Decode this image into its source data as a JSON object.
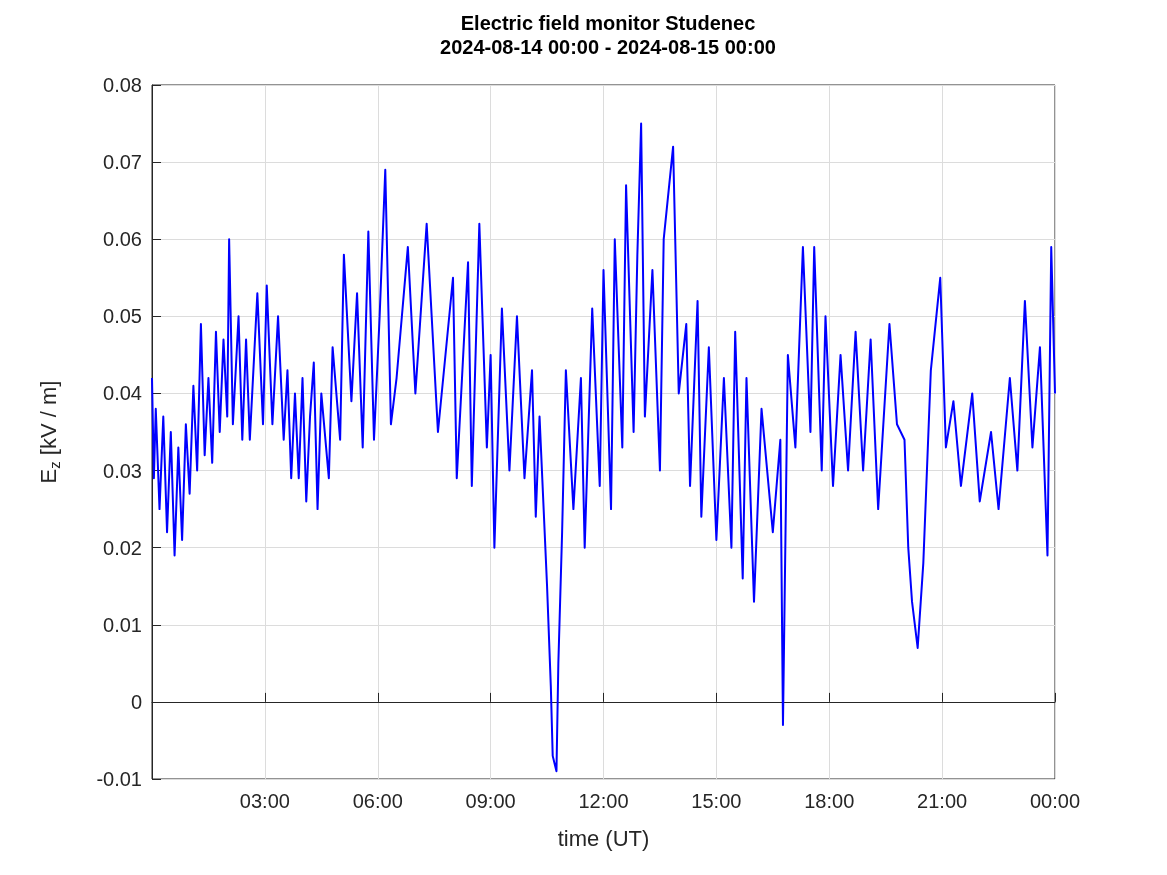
{
  "chart_data": {
    "type": "line",
    "title": "Electric field monitor Studenec",
    "subtitle": "2024-08-14 00:00 - 2024-08-15 00:00",
    "xlabel": "time (UT)",
    "ylabel": "E$_{z}$ [kV / m]",
    "x": [
      0,
      0.05,
      0.1,
      0.2,
      0.3,
      0.4,
      0.5,
      0.6,
      0.7,
      0.8,
      0.9,
      1.0,
      1.1,
      1.2,
      1.3,
      1.4,
      1.5,
      1.6,
      1.7,
      1.8,
      1.9,
      2.0,
      2.05,
      2.15,
      2.3,
      2.4,
      2.5,
      2.6,
      2.8,
      2.95,
      3.05,
      3.2,
      3.35,
      3.5,
      3.6,
      3.7,
      3.8,
      3.9,
      4.0,
      4.1,
      4.2,
      4.3,
      4.4,
      4.5,
      4.7,
      4.8,
      5.0,
      5.1,
      5.3,
      5.45,
      5.6,
      5.75,
      5.9,
      6.05,
      6.2,
      6.35,
      6.5,
      6.8,
      7.0,
      7.3,
      7.6,
      8.0,
      8.1,
      8.4,
      8.5,
      8.7,
      8.9,
      9.0,
      9.1,
      9.3,
      9.5,
      9.7,
      9.9,
      10.1,
      10.2,
      10.3,
      10.5,
      10.6,
      10.65,
      10.75,
      10.8,
      10.9,
      11.0,
      11.2,
      11.4,
      11.5,
      11.7,
      11.9,
      12.0,
      12.2,
      12.3,
      12.5,
      12.6,
      12.8,
      12.9,
      13.0,
      13.1,
      13.3,
      13.5,
      13.6,
      13.85,
      14.0,
      14.2,
      14.3,
      14.5,
      14.6,
      14.8,
      15.0,
      15.2,
      15.4,
      15.5,
      15.7,
      15.8,
      16.0,
      16.2,
      16.5,
      16.7,
      16.77,
      16.9,
      17.1,
      17.3,
      17.5,
      17.6,
      17.8,
      17.9,
      18.1,
      18.3,
      18.5,
      18.7,
      18.9,
      19.1,
      19.3,
      19.6,
      19.8,
      20.0,
      20.1,
      20.2,
      20.35,
      20.5,
      20.7,
      20.95,
      21.1,
      21.3,
      21.5,
      21.8,
      22.0,
      22.3,
      22.5,
      22.8,
      23.0,
      23.2,
      23.4,
      23.6,
      23.8,
      23.9,
      24.0
    ],
    "series": [
      {
        "color": "#0000ff",
        "values": [
          0.042,
          0.029,
          0.038,
          0.025,
          0.037,
          0.022,
          0.035,
          0.019,
          0.033,
          0.021,
          0.036,
          0.027,
          0.041,
          0.03,
          0.049,
          0.032,
          0.042,
          0.031,
          0.048,
          0.035,
          0.047,
          0.037,
          0.06,
          0.036,
          0.05,
          0.034,
          0.047,
          0.034,
          0.053,
          0.036,
          0.054,
          0.036,
          0.05,
          0.034,
          0.043,
          0.029,
          0.04,
          0.029,
          0.042,
          0.026,
          0.037,
          0.044,
          0.025,
          0.04,
          0.029,
          0.046,
          0.034,
          0.058,
          0.039,
          0.053,
          0.033,
          0.061,
          0.034,
          0.05,
          0.069,
          0.036,
          0.042,
          0.059,
          0.04,
          0.062,
          0.035,
          0.055,
          0.029,
          0.057,
          0.028,
          0.062,
          0.033,
          0.045,
          0.02,
          0.051,
          0.03,
          0.05,
          0.029,
          0.043,
          0.024,
          0.037,
          0.015,
          0.002,
          -0.007,
          -0.009,
          0.005,
          0.022,
          0.043,
          0.025,
          0.042,
          0.02,
          0.051,
          0.028,
          0.056,
          0.025,
          0.06,
          0.033,
          0.067,
          0.035,
          0.058,
          0.075,
          0.037,
          0.056,
          0.03,
          0.06,
          0.072,
          0.04,
          0.049,
          0.028,
          0.052,
          0.024,
          0.046,
          0.021,
          0.042,
          0.02,
          0.048,
          0.016,
          0.042,
          0.013,
          0.038,
          0.022,
          0.034,
          -0.003,
          0.045,
          0.033,
          0.059,
          0.035,
          0.059,
          0.03,
          0.05,
          0.028,
          0.045,
          0.03,
          0.048,
          0.03,
          0.047,
          0.025,
          0.049,
          0.036,
          0.034,
          0.02,
          0.013,
          0.007,
          0.018,
          0.043,
          0.055,
          0.033,
          0.039,
          0.028,
          0.04,
          0.026,
          0.035,
          0.025,
          0.042,
          0.03,
          0.052,
          0.033,
          0.046,
          0.019,
          0.059,
          0.04
        ]
      }
    ],
    "xlim": [
      0,
      24
    ],
    "xticks": [
      {
        "value": 3,
        "label": "03:00"
      },
      {
        "value": 6,
        "label": "06:00"
      },
      {
        "value": 9,
        "label": "09:00"
      },
      {
        "value": 12,
        "label": "12:00"
      },
      {
        "value": 15,
        "label": "15:00"
      },
      {
        "value": 18,
        "label": "18:00"
      },
      {
        "value": 21,
        "label": "21:00"
      },
      {
        "value": 24,
        "label": "00:00"
      }
    ],
    "ylim": [
      -0.01,
      0.08
    ],
    "yticks": [
      -0.01,
      0,
      0.01,
      0.02,
      0.03,
      0.04,
      0.05,
      0.06,
      0.07,
      0.08
    ],
    "grid": true
  }
}
